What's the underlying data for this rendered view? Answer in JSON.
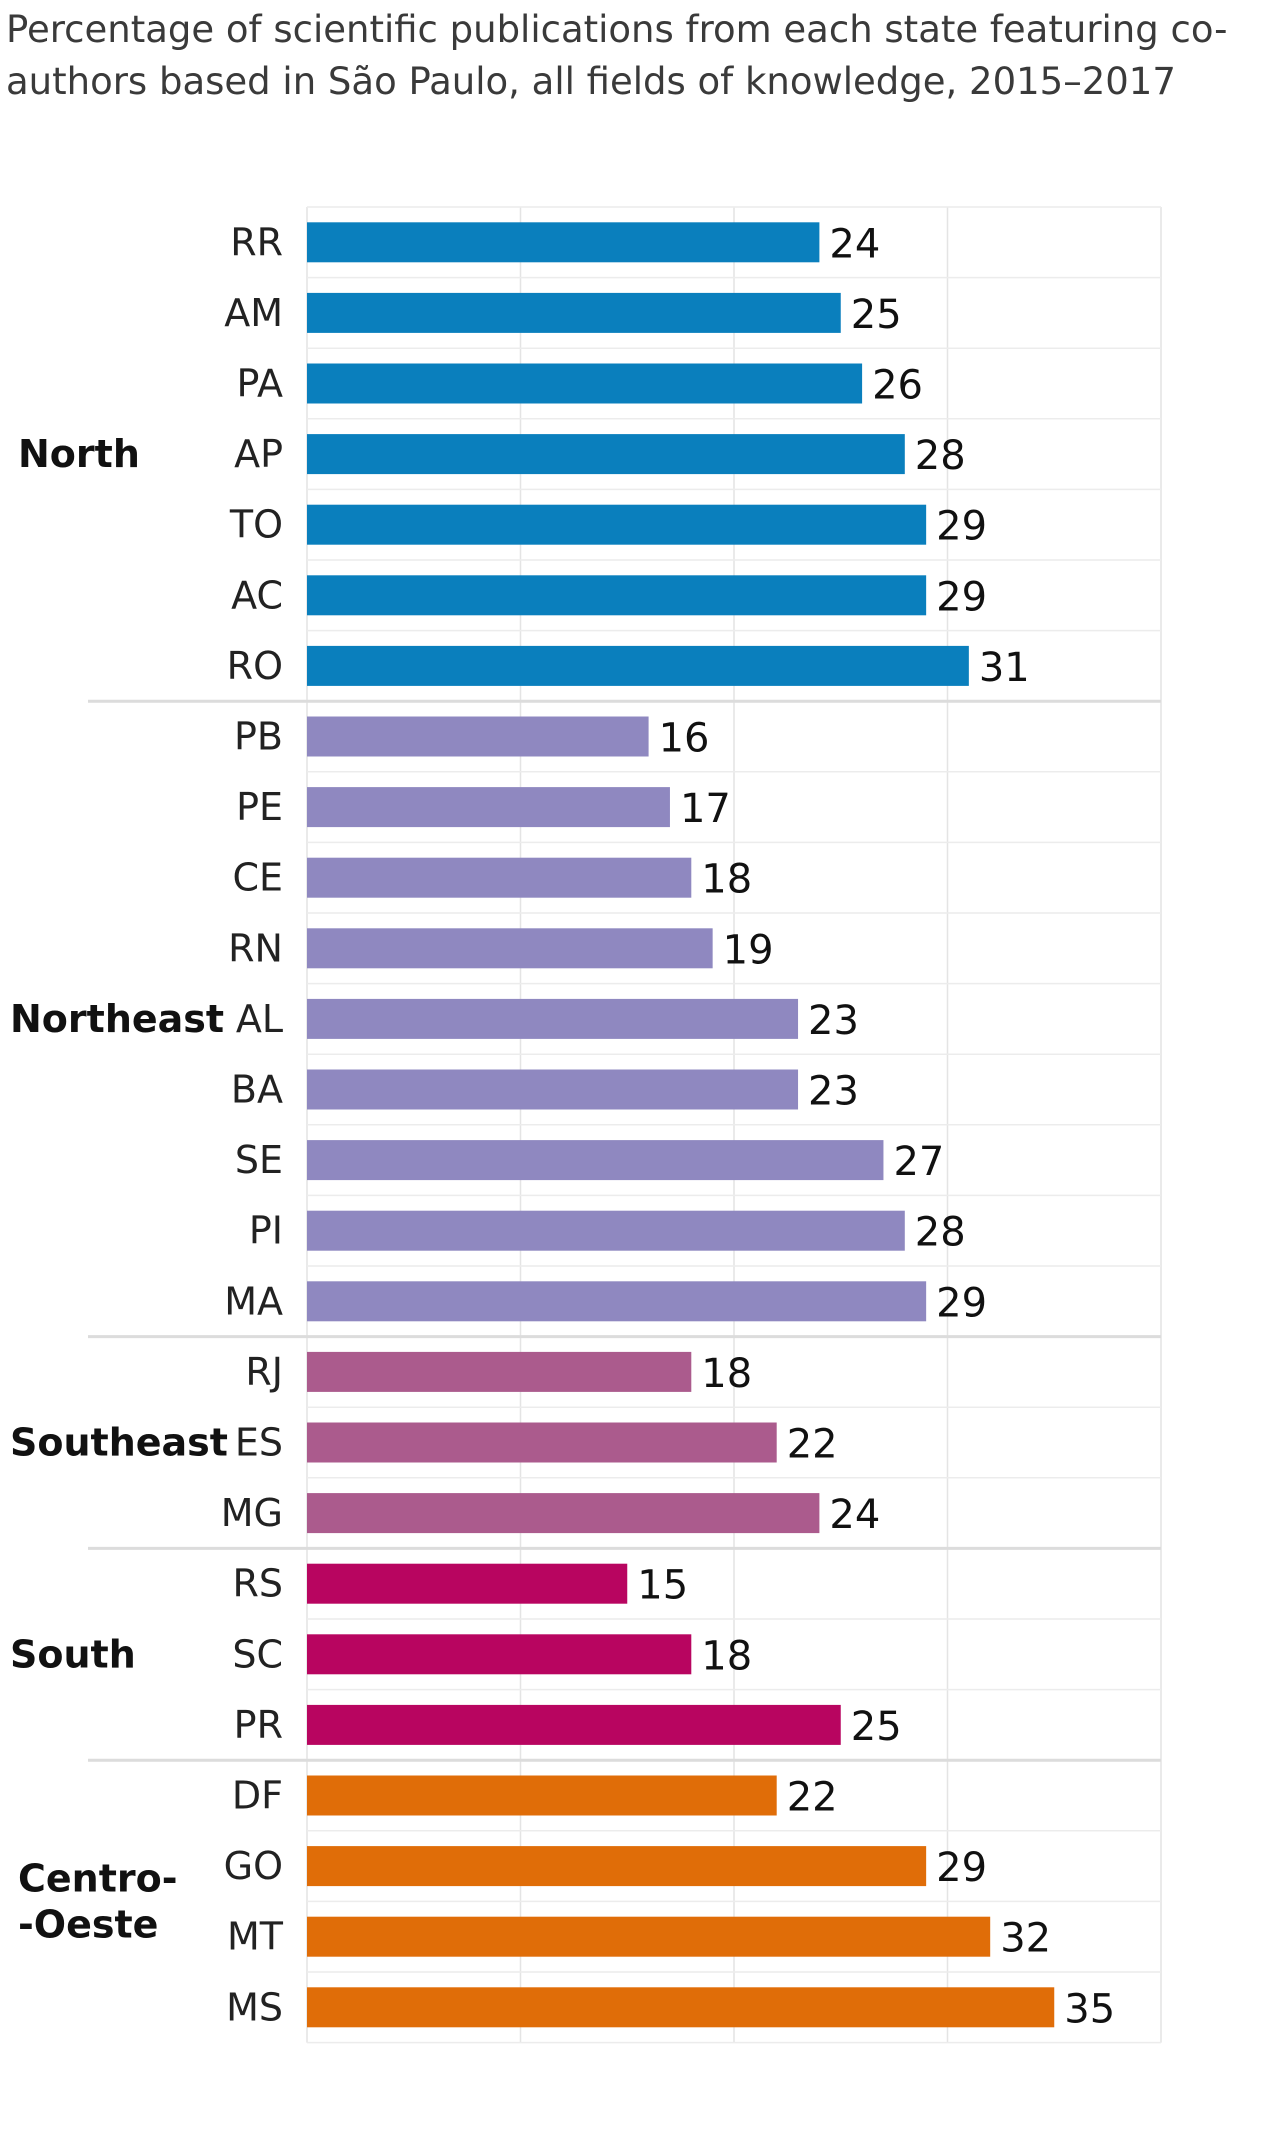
{
  "title": "Percentage of scientific publications from each state featuring co-authors based in São Paulo, all fields of knowledge, 2015–2017",
  "chart_data": {
    "type": "bar",
    "orientation": "horizontal",
    "title": "Percentage of scientific publications from each state featuring co-authors based in São Paulo, all fields of knowledge, 2015–2017",
    "xlabel": "",
    "ylabel": "",
    "xlim": [
      0,
      40
    ],
    "grid": "vertical gridlines every 10",
    "groups": [
      {
        "name": "North",
        "label_lines": [
          "North"
        ],
        "color": "#0a7fbd",
        "categories": [
          "RR",
          "AM",
          "PA",
          "AP",
          "TO",
          "AC",
          "RO"
        ],
        "values": [
          24,
          25,
          26,
          28,
          29,
          29,
          31
        ]
      },
      {
        "name": "Northeast",
        "label_lines": [
          "Northeast"
        ],
        "color": "#8f88c0",
        "categories": [
          "PB",
          "PE",
          "CE",
          "RN",
          "AL",
          "BA",
          "SE",
          "PI",
          "MA"
        ],
        "values": [
          16,
          17,
          18,
          19,
          23,
          23,
          27,
          28,
          29
        ]
      },
      {
        "name": "Southeast",
        "label_lines": [
          "Southeast"
        ],
        "color": "#ab5b8d",
        "categories": [
          "RJ",
          "ES",
          "MG"
        ],
        "values": [
          18,
          22,
          24
        ]
      },
      {
        "name": "South",
        "label_lines": [
          "South"
        ],
        "color": "#b80560",
        "categories": [
          "RS",
          "SC",
          "PR"
        ],
        "values": [
          15,
          18,
          25
        ]
      },
      {
        "name": "Centro-Oeste",
        "label_lines": [
          "Centro-",
          "-Oeste"
        ],
        "color": "#e06d08",
        "categories": [
          "DF",
          "GO",
          "MT",
          "MS"
        ],
        "values": [
          22,
          29,
          32,
          35
        ]
      }
    ]
  }
}
